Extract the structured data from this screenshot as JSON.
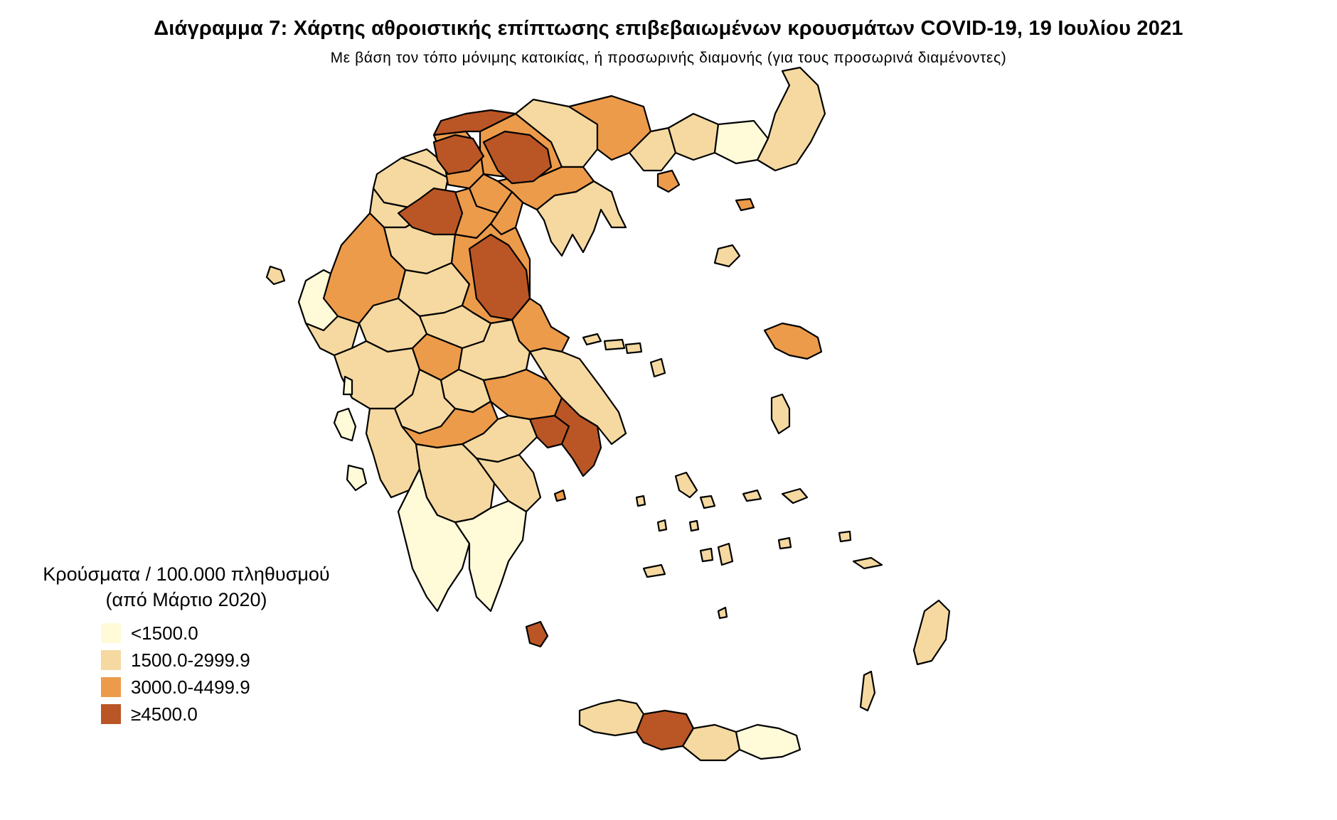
{
  "title": "Διάγραμμα 7: Χάρτης αθροιστικής επίπτωσης επιβεβαιωμένων κρουσμάτων COVID-19, 19 Ιουλίου 2021",
  "subtitle": "Με βάση τον τόπο μόνιμης κατοικίας, ή προσωρινής διαμονής (για τους προσωρινά διαμένοντες)",
  "legend": {
    "title_line1": "Κρούσματα / 100.000 πληθυσμού",
    "title_line2": "(από Μάρτιο 2020)",
    "items": [
      {
        "label": "<1500.0",
        "color": "#FFFBD9"
      },
      {
        "label": "1500.0-2999.9",
        "color": "#F5D9A0"
      },
      {
        "label": "3000.0-4499.9",
        "color": "#EC9B4B"
      },
      {
        "label": "≥4500.0",
        "color": "#BA5625"
      }
    ]
  }
}
